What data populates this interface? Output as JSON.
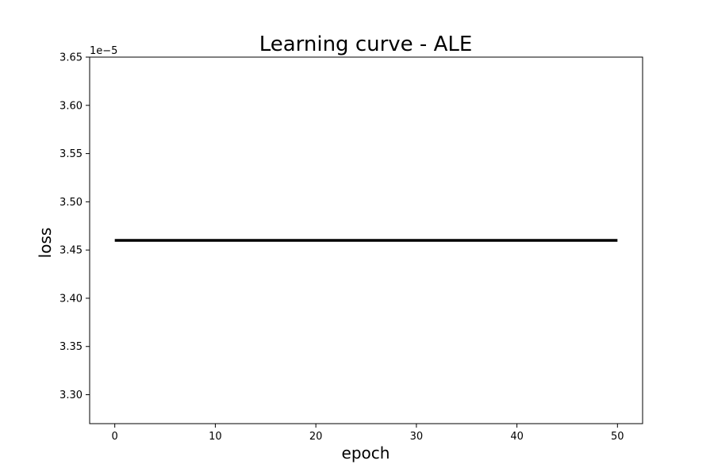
{
  "chart_data": {
    "type": "line",
    "title": "Learning curve - ALE",
    "xlabel": "epoch",
    "ylabel": "loss",
    "y_offset_label": "1e−5",
    "xlim": [
      -2.5,
      52.5
    ],
    "ylim": [
      3.27,
      3.65
    ],
    "x_ticks": [
      0,
      10,
      20,
      30,
      40,
      50
    ],
    "x_tick_labels": [
      "0",
      "10",
      "20",
      "30",
      "40",
      "50"
    ],
    "y_ticks": [
      3.3,
      3.35,
      3.4,
      3.45,
      3.5,
      3.55,
      3.6,
      3.65
    ],
    "y_tick_labels": [
      "3.30",
      "3.35",
      "3.40",
      "3.45",
      "3.50",
      "3.55",
      "3.60",
      "3.65"
    ],
    "grid": false,
    "series": [
      {
        "name": "loss",
        "color": "#000000",
        "x": [
          0,
          50
        ],
        "y": [
          3.46,
          3.46
        ]
      }
    ]
  }
}
